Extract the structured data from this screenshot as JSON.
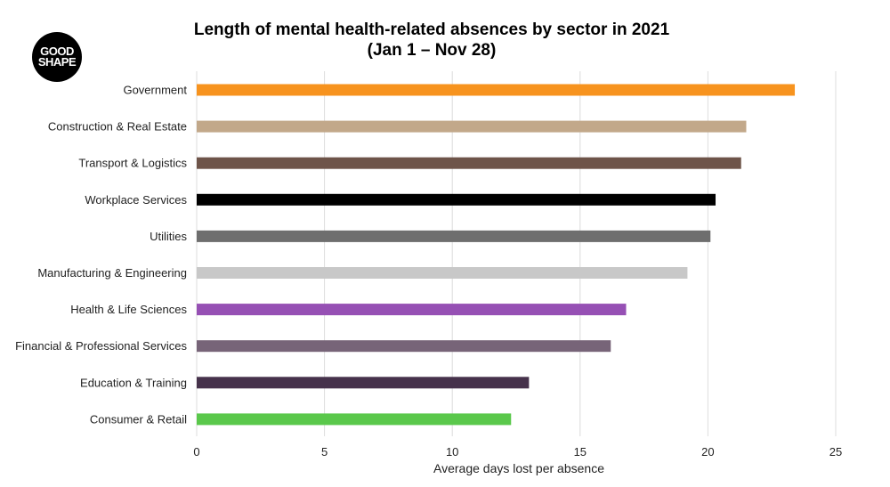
{
  "logo": {
    "line1": "GOOD",
    "line2": "SHAPE"
  },
  "chart_data": {
    "type": "bar",
    "orientation": "horizontal",
    "title": "Length of mental health-related absences by sector in 2021",
    "subtitle": "(Jan 1 – Nov 28)",
    "xlabel": "Average days lost per absence",
    "ylabel": "",
    "xlim": [
      0,
      25
    ],
    "xticks": [
      0,
      5,
      10,
      15,
      20,
      25
    ],
    "grid": true,
    "categories": [
      "Government",
      "Construction & Real Estate",
      "Transport & Logistics",
      "Workplace Services",
      "Utilities",
      "Manufacturing & Engineering",
      "Health & Life Sciences",
      "Financial & Professional Services",
      "Education & Training",
      "Consumer & Retail"
    ],
    "values": [
      23.4,
      21.5,
      21.3,
      20.3,
      20.1,
      19.2,
      16.8,
      16.2,
      13.0,
      12.3
    ],
    "colors": [
      "#f7931e",
      "#c2a88a",
      "#6e5449",
      "#000000",
      "#6e6e6e",
      "#c8c8c8",
      "#9650b4",
      "#776478",
      "#46324b",
      "#5ac84b"
    ]
  }
}
